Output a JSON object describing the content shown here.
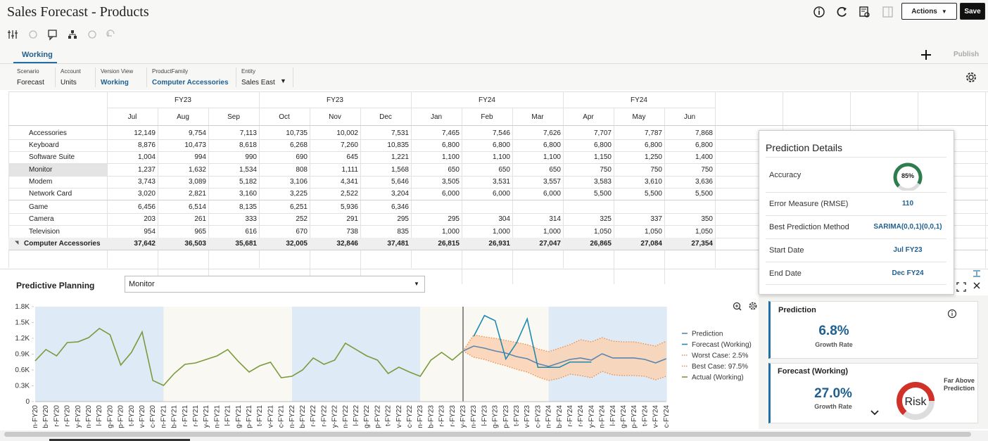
{
  "header": {
    "title": "Sales Forecast - Products",
    "actions": "Actions",
    "save": "Save"
  },
  "tabs": {
    "active": "Working",
    "publish": "Publish"
  },
  "pov": [
    {
      "label": "Scenario",
      "value": "Forecast"
    },
    {
      "label": "Account",
      "value": "Units"
    },
    {
      "label": "Version View",
      "value": "Working"
    },
    {
      "label": "ProductFamily",
      "value": "Computer Accessories"
    },
    {
      "label": "Entity",
      "value": "Sales East"
    }
  ],
  "grid": {
    "year_headers": [
      "FY23",
      "FY23",
      "FY24",
      "FY24"
    ],
    "months": [
      "Jul",
      "Aug",
      "Sep",
      "Oct",
      "Nov",
      "Dec",
      "Jan",
      "Feb",
      "Mar",
      "Apr",
      "May",
      "Jun"
    ],
    "rows": [
      {
        "label": "Accessories",
        "cells": [
          "12,149",
          "9,754",
          "7,113",
          "10,735",
          "10,002",
          "7,531",
          "7,465",
          "7,546",
          "7,626",
          "7,707",
          "7,787",
          "7,868"
        ]
      },
      {
        "label": "Keyboard",
        "cells": [
          "8,876",
          "10,473",
          "8,618",
          "6,268",
          "7,260",
          "10,835",
          "6,800",
          "6,800",
          "6,800",
          "6,800",
          "6,800",
          "6,800"
        ]
      },
      {
        "label": "Software Suite",
        "cells": [
          "1,004",
          "994",
          "990",
          "690",
          "645",
          "1,221",
          "1,100",
          "1,100",
          "1,100",
          "1,150",
          "1,250",
          "1,400"
        ]
      },
      {
        "label": "Monitor",
        "cells": [
          "1,237",
          "1,632",
          "1,534",
          "808",
          "1,111",
          "1,568",
          "650",
          "650",
          "650",
          "750",
          "750",
          "750"
        ]
      },
      {
        "label": "Modem",
        "cells": [
          "3,743",
          "3,089",
          "5,182",
          "3,106",
          "4,341",
          "5,646",
          "3,505",
          "3,531",
          "3,557",
          "3,583",
          "3,610",
          "3,636"
        ]
      },
      {
        "label": "Network Card",
        "cells": [
          "3,020",
          "2,821",
          "3,160",
          "3,225",
          "2,522",
          "3,204",
          "6,000",
          "6,000",
          "6,000",
          "5,500",
          "5,500",
          "5,500"
        ]
      },
      {
        "label": "Game",
        "cells": [
          "6,456",
          "6,514",
          "8,135",
          "6,251",
          "5,936",
          "6,346",
          null,
          null,
          null,
          null,
          null,
          null
        ]
      },
      {
        "label": "Camera",
        "cells": [
          "203",
          "261",
          "333",
          "252",
          "291",
          "295",
          "295",
          "304",
          "314",
          "325",
          "337",
          "350"
        ]
      },
      {
        "label": "Television",
        "cells": [
          "954",
          "965",
          "616",
          "670",
          "738",
          "835",
          "1,000",
          "1,000",
          "1,000",
          "1,050",
          "1,050",
          "1,050"
        ]
      },
      {
        "label": "Computer Accessories",
        "cells": [
          "37,642",
          "36,503",
          "35,681",
          "32,005",
          "32,846",
          "37,481",
          "26,815",
          "26,931",
          "27,047",
          "26,865",
          "27,084",
          "27,354"
        ]
      }
    ]
  },
  "predictive": {
    "title": "Predictive Planning",
    "member": "Monitor"
  },
  "details": {
    "title": "Prediction Details",
    "rows": [
      {
        "label": "Accuracy",
        "value": "85%"
      },
      {
        "label": "Error Measure (RMSE)",
        "value": "110"
      },
      {
        "label": "Best Prediction Method",
        "value": "SARIMA(0,0,1)(0,0,1)"
      },
      {
        "label": "Start Date",
        "value": "Jul FY23"
      },
      {
        "label": "End Date",
        "value": "Dec FY24"
      }
    ]
  },
  "cards": [
    {
      "title": "Prediction",
      "value": "6.8%",
      "caption": "Growth Rate"
    },
    {
      "title": "Forecast (Working)",
      "value": "27.0%",
      "caption": "Growth Rate",
      "gauge": "Risk",
      "status": "Far Above Prediction"
    }
  ],
  "chart_data": {
    "type": "line",
    "categories": [
      "n-FY20",
      "b-FY20",
      "r-FY20",
      "r-FY20",
      "y-FY20",
      "n-FY20",
      "l-FY20",
      "g-FY20",
      "p-FY20",
      "t-FY20",
      "v-FY20",
      "c-FY20",
      "n-FY21",
      "b-FY21",
      "r-FY21",
      "r-FY21",
      "y-FY21",
      "n-FY21",
      "l-FY21",
      "g-FY21",
      "p-FY21",
      "t-FY21",
      "v-FY21",
      "c-FY21",
      "n-FY22",
      "b-FY22",
      "r-FY22",
      "r-FY22",
      "y-FY22",
      "n-FY22",
      "l-FY22",
      "g-FY22",
      "p-FY22",
      "t-FY22",
      "v-FY22",
      "c-FY22",
      "n-FY23",
      "b-FY23",
      "r-FY23",
      "r-FY23",
      "y-FY23",
      "n-FY23",
      "l-FY23",
      "g-FY23",
      "p-FY23",
      "t-FY23",
      "v-FY23",
      "c-FY23",
      "n-FY24",
      "b-FY24",
      "r-FY24",
      "r-FY24",
      "y-FY24",
      "n-FY24",
      "l-FY24",
      "g-FY24",
      "p-FY24",
      "t-FY24",
      "v-FY24",
      "c-FY24"
    ],
    "series": [
      {
        "name": "Prediction",
        "color": "#5a86b0",
        "style": "solid",
        "values": [
          null,
          null,
          null,
          null,
          null,
          null,
          null,
          null,
          null,
          null,
          null,
          null,
          null,
          null,
          null,
          null,
          null,
          null,
          null,
          null,
          null,
          null,
          null,
          null,
          null,
          null,
          null,
          null,
          null,
          null,
          null,
          null,
          null,
          null,
          null,
          null,
          null,
          null,
          null,
          null,
          960,
          1053,
          1013,
          960,
          920,
          853,
          813,
          720,
          667,
          733,
          800,
          827,
          787,
          907,
          827,
          827,
          827,
          800,
          733,
          813
        ]
      },
      {
        "name": "Forecast (Working)",
        "color": "#1f8ab0",
        "style": "solid",
        "values": [
          null,
          null,
          null,
          null,
          null,
          null,
          null,
          null,
          null,
          null,
          null,
          null,
          null,
          null,
          null,
          null,
          null,
          null,
          null,
          null,
          null,
          null,
          null,
          null,
          null,
          null,
          null,
          null,
          null,
          null,
          null,
          null,
          null,
          null,
          null,
          null,
          null,
          null,
          null,
          null,
          null,
          1237,
          1632,
          1534,
          808,
          1111,
          1568,
          650,
          650,
          650,
          750,
          750,
          750,
          null,
          null,
          null,
          null,
          null,
          null,
          null
        ]
      },
      {
        "name": "Worst Case: 2.5%",
        "color": "#ef8a3e",
        "style": "dotted",
        "values": [
          null,
          null,
          null,
          null,
          null,
          null,
          null,
          null,
          null,
          null,
          null,
          null,
          null,
          null,
          null,
          null,
          null,
          null,
          null,
          null,
          null,
          null,
          null,
          null,
          null,
          null,
          null,
          null,
          null,
          null,
          null,
          null,
          null,
          null,
          null,
          null,
          null,
          null,
          null,
          null,
          960,
          840,
          800,
          733,
          680,
          613,
          560,
          467,
          400,
          440,
          520,
          493,
          453,
          573,
          507,
          493,
          493,
          480,
          413,
          480
        ]
      },
      {
        "name": "Best Case: 97.5%",
        "color": "#ef8a3e",
        "style": "dotted",
        "values": [
          null,
          null,
          null,
          null,
          null,
          null,
          null,
          null,
          null,
          null,
          null,
          null,
          null,
          null,
          null,
          null,
          null,
          null,
          null,
          null,
          null,
          null,
          null,
          null,
          null,
          null,
          null,
          null,
          null,
          null,
          null,
          null,
          null,
          null,
          null,
          null,
          null,
          null,
          null,
          null,
          960,
          1267,
          1227,
          1200,
          1160,
          1120,
          1080,
          1000,
          947,
          1013,
          1080,
          1173,
          1133,
          1213,
          1147,
          1133,
          1133,
          1093,
          1053,
          1147
        ]
      },
      {
        "name": "Actual (Working)",
        "color": "#7b9a3c",
        "style": "solid",
        "values": [
          773,
          987,
          867,
          1120,
          1133,
          1213,
          1387,
          1267,
          693,
          933,
          1320,
          400,
          307,
          533,
          707,
          733,
          800,
          867,
          987,
          760,
          560,
          680,
          747,
          453,
          480,
          600,
          827,
          707,
          787,
          1107,
          987,
          867,
          787,
          533,
          653,
          560,
          480,
          787,
          933,
          787,
          960,
          null,
          null,
          null,
          null,
          null,
          null,
          null,
          null,
          null,
          null,
          null,
          null,
          null,
          null,
          null,
          null,
          null,
          null,
          null
        ]
      }
    ],
    "band_color": "#fad2b3",
    "ylim": [
      0,
      1800
    ],
    "yticks": [
      0,
      {
        "value": 300,
        "label": "0.3K"
      },
      {
        "value": 600,
        "label": "0.6K"
      },
      {
        "value": 900,
        "label": "0.9K"
      },
      {
        "value": 1200,
        "label": "1.2K"
      },
      {
        "value": 1500,
        "label": "1.5K"
      },
      {
        "value": 1800,
        "label": "1.8K"
      }
    ],
    "grid": false,
    "legend": "right"
  }
}
